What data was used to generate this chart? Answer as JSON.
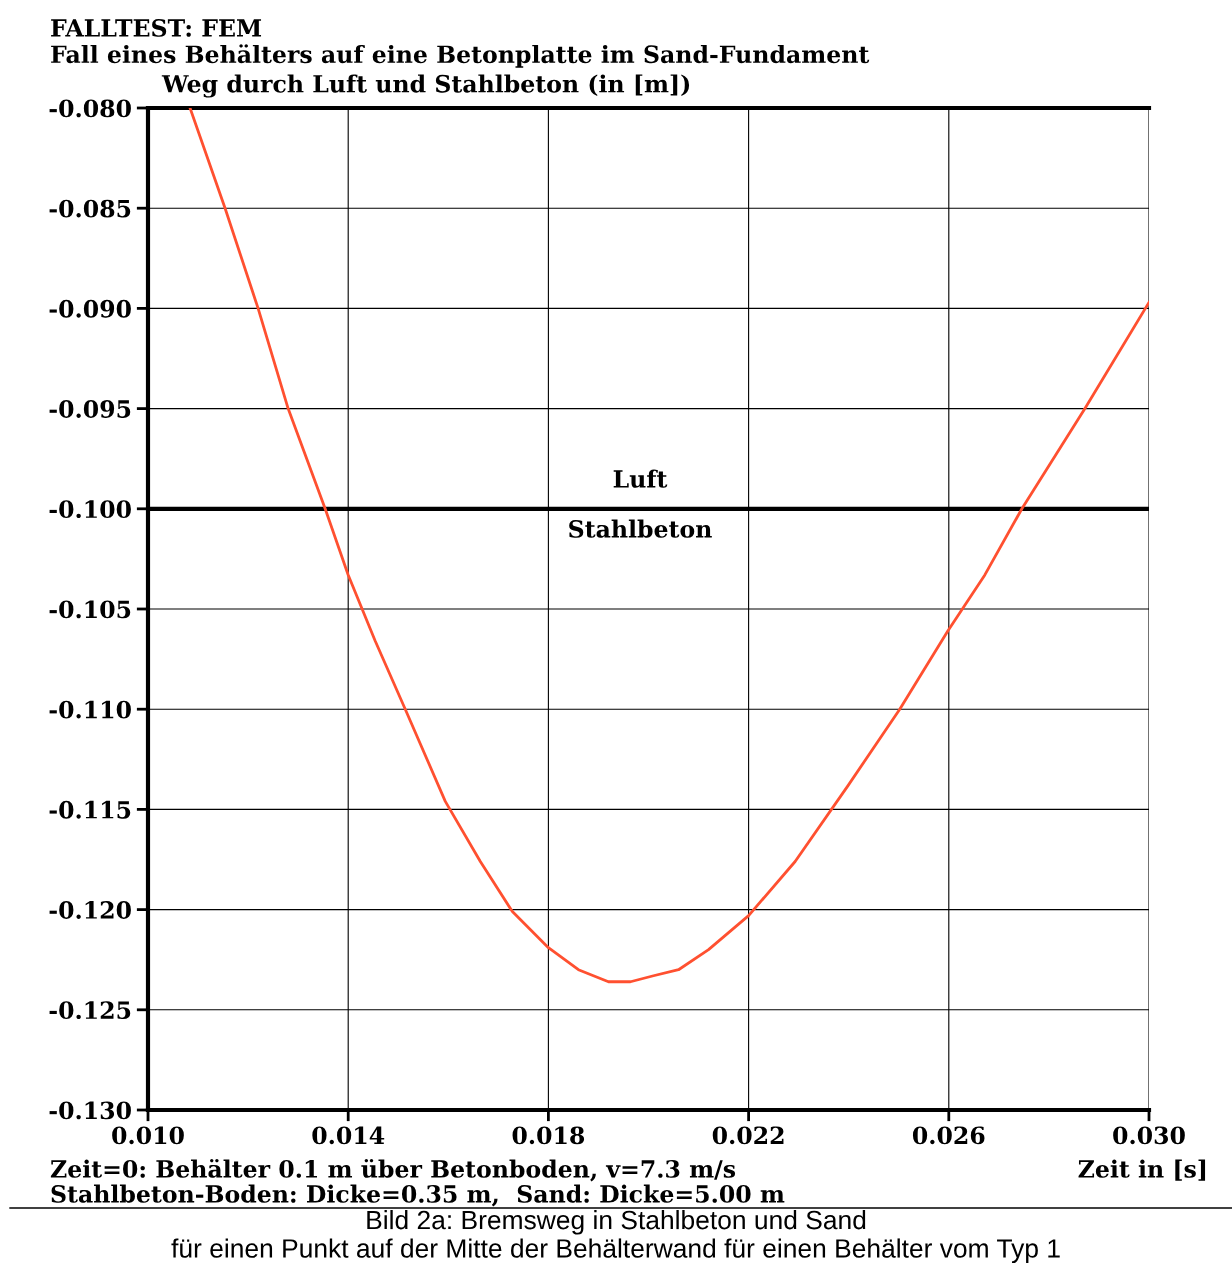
{
  "chart_data": {
    "type": "line",
    "title": "FALLTEST: FEM",
    "subtitle": "Fall eines Behälters auf eine Betonplatte im Sand-Fundament",
    "ylabel": "Weg durch Luft und Stahlbeton (in [m])",
    "xlabel": "Zeit in [s]",
    "series": [
      {
        "color": "#ff5030",
        "x": [
          0.01084,
          0.01154,
          0.0122,
          0.0128,
          0.01354,
          0.014,
          0.01454,
          0.01514,
          0.01594,
          0.01664,
          0.01728,
          0.018,
          0.0186,
          0.0192,
          0.01964,
          0.0201,
          0.0206,
          0.0212,
          0.022,
          0.02293,
          0.02399,
          0.02502,
          0.02598,
          0.02672,
          0.02746,
          0.02872,
          0.03
        ],
        "values": [
          -0.08,
          -0.085,
          -0.09,
          -0.095,
          -0.1,
          -0.1033,
          -0.1066,
          -0.11,
          -0.1146,
          -0.1176,
          -0.1201,
          -0.1219,
          -0.123,
          -0.1236,
          -0.1236,
          -0.1233,
          -0.123,
          -0.122,
          -0.1203,
          -0.1176,
          -0.1138,
          -0.11,
          -0.1061,
          -0.1033,
          -0.1,
          -0.095,
          -0.0897
        ]
      }
    ],
    "xlim": [
      0.01,
      0.03
    ],
    "ylim": [
      -0.13,
      -0.08
    ],
    "xticks": [
      {
        "value": 0.01,
        "label": "0.010"
      },
      {
        "value": 0.014,
        "label": "0.014"
      },
      {
        "value": 0.018,
        "label": "0.018"
      },
      {
        "value": 0.022,
        "label": "0.022"
      },
      {
        "value": 0.026,
        "label": "0.026"
      },
      {
        "value": 0.03,
        "label": "0.030"
      }
    ],
    "yticks": [
      {
        "value": -0.13,
        "label": "-0.130"
      },
      {
        "value": -0.125,
        "label": "-0.125"
      },
      {
        "value": -0.12,
        "label": "-0.120"
      },
      {
        "value": -0.115,
        "label": "-0.115"
      },
      {
        "value": -0.11,
        "label": "-0.110"
      },
      {
        "value": -0.105,
        "label": "-0.105"
      },
      {
        "value": -0.1,
        "label": "-0.100"
      },
      {
        "value": -0.095,
        "label": "-0.095"
      },
      {
        "value": -0.09,
        "label": "-0.090"
      },
      {
        "value": -0.085,
        "label": "-0.085"
      },
      {
        "value": -0.08,
        "label": "-0.080"
      }
    ],
    "grid": true,
    "marker": "none",
    "line_style": "solid",
    "ref_lines": [
      {
        "axis": "y",
        "value": -0.1,
        "color": "#000000"
      }
    ],
    "annotations": [
      "Luft",
      "Stahlbeton",
      "Zeit=0: Behälter 0.1 m über Betonboden, v=7.3 m/s",
      "Stahlbeton-Boden: Dicke=0.35 m,  Sand: Dicke=5.00 m",
      "Bild 2a: Bremsweg in Stahlbeton und Sand\nfür einen Punkt auf der Mitte der Behälterwand für einen Behälter vom Typ 1"
    ]
  }
}
